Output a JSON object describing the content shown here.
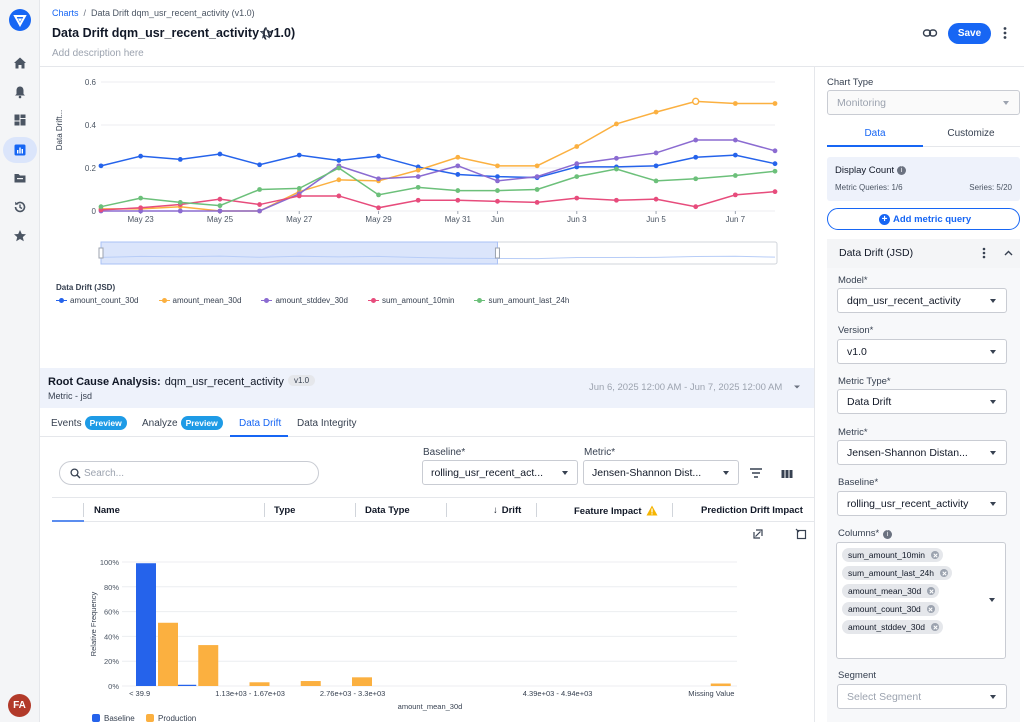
{
  "breadcrumb": {
    "root": "Charts",
    "separator": "/",
    "current": "Data Drift dqm_usr_recent_activity (v1.0)"
  },
  "header": {
    "title": "Data Drift dqm_usr_recent_activity (v1.0)",
    "description_placeholder": "Add description here",
    "save_label": "Save"
  },
  "user": {
    "initials": "FA"
  },
  "colors": {
    "accent": "#1766f4",
    "series": [
      "#2563eb",
      "#fbb040",
      "#8b6bd1",
      "#e74c7c",
      "#6cc07a"
    ]
  },
  "chart_data": [
    {
      "type": "line",
      "ylabel": "Data Drift...",
      "ylim": [
        0,
        0.6
      ],
      "yticks": [
        "0",
        "0.2",
        "0.4",
        "0.6"
      ],
      "x_tick_labels": [
        "May 23",
        "May 25",
        "May 27",
        "May 29",
        "May 31",
        "Jun",
        "Jun 3",
        "Jun 5",
        "Jun 7"
      ],
      "x": [
        "May 22",
        "May 23",
        "May 24",
        "May 25",
        "May 26",
        "May 27",
        "May 28",
        "May 29",
        "May 30",
        "May 31",
        "Jun 1",
        "Jun 2",
        "Jun 3",
        "Jun 4",
        "Jun 5",
        "Jun 6",
        "Jun 7",
        "Jun 8"
      ],
      "legend_title": "Data Drift (JSD)",
      "series": [
        {
          "name": "amount_count_30d",
          "color": "#2563eb",
          "values": [
            0.21,
            0.255,
            0.24,
            0.265,
            0.215,
            0.26,
            0.235,
            0.255,
            0.205,
            0.17,
            0.16,
            0.155,
            0.205,
            0.205,
            0.21,
            0.25,
            0.26,
            0.22
          ]
        },
        {
          "name": "amount_mean_30d",
          "color": "#fbb040",
          "values": [
            0.01,
            0.01,
            0.02,
            0.0,
            0.0,
            0.09,
            0.145,
            0.14,
            0.19,
            0.25,
            0.21,
            0.21,
            0.3,
            0.405,
            0.46,
            0.51,
            0.5,
            0.5
          ]
        },
        {
          "name": "amount_stddev_30d",
          "color": "#8b6bd1",
          "values": [
            0.0,
            0.0,
            0.0,
            0.0,
            0.0,
            0.08,
            0.21,
            0.15,
            0.16,
            0.21,
            0.14,
            0.16,
            0.22,
            0.245,
            0.27,
            0.33,
            0.33,
            0.28
          ]
        },
        {
          "name": "sum_amount_10min",
          "color": "#e74c7c",
          "values": [
            0.005,
            0.015,
            0.03,
            0.055,
            0.03,
            0.07,
            0.07,
            0.015,
            0.05,
            0.05,
            0.045,
            0.04,
            0.06,
            0.05,
            0.055,
            0.02,
            0.075,
            0.09
          ]
        },
        {
          "name": "sum_amount_last_24h",
          "color": "#6cc07a",
          "values": [
            0.02,
            0.06,
            0.04,
            0.025,
            0.1,
            0.105,
            0.2,
            0.075,
            0.11,
            0.095,
            0.095,
            0.1,
            0.16,
            0.195,
            0.14,
            0.15,
            0.165,
            0.185
          ]
        }
      ],
      "hollow_markers": [
        {
          "series": "amount_mean_30d",
          "x": "Jun 6"
        }
      ],
      "range_slider": {
        "start": "May 22",
        "end": "Jun 1"
      }
    },
    {
      "type": "bar",
      "ylabel": "Relative Frequency",
      "xlabel": "amount_mean_30d",
      "ylim": [
        0,
        100
      ],
      "yticks": [
        "0%",
        "20%",
        "40%",
        "60%",
        "80%",
        "100%"
      ],
      "x_tick_labels": [
        "< 39.9",
        "1.13e+03 - 1.67e+03",
        "2.76e+03 - 3.3e+03",
        "4.39e+03 - 4.94e+03",
        "Missing Value"
      ],
      "categories": 12,
      "series": [
        {
          "name": "Baseline",
          "color": "#2563eb",
          "values": [
            99,
            1,
            0,
            0,
            0,
            0,
            0,
            0,
            0,
            0,
            0,
            0
          ]
        },
        {
          "name": "Production",
          "color": "#fbb040",
          "values": [
            51,
            33,
            3,
            4,
            7,
            0,
            0,
            0,
            0,
            0,
            0,
            2
          ]
        }
      ]
    }
  ],
  "rca": {
    "label": "Root Cause Analysis:",
    "model": "dqm_usr_recent_activity",
    "version": "v1.0",
    "metric": "Metric - jsd",
    "date_range": "Jun 6, 2025 12:00 AM - Jun 7, 2025 12:00 AM",
    "tabs": [
      {
        "label": "Events",
        "badge": "Preview"
      },
      {
        "label": "Analyze",
        "badge": "Preview"
      },
      {
        "label": "Data Drift",
        "badge": ""
      },
      {
        "label": "Data Integrity",
        "badge": ""
      }
    ],
    "search_placeholder": "Search...",
    "baseline_label": "Baseline*",
    "baseline_value": "rolling_usr_recent_act...",
    "metric_label": "Metric*",
    "metric_value": "Jensen-Shannon Dist...",
    "columns": [
      "Name",
      "Type",
      "Data Type",
      "Drift",
      "Feature Impact",
      "Prediction Drift Impact"
    ],
    "sort_column": "Drift"
  },
  "panel": {
    "chart_type_label": "Chart Type",
    "chart_type_value": "Monitoring",
    "tabs": [
      "Data",
      "Customize"
    ],
    "display_count_label": "Display Count",
    "metric_queries": "Metric Queries: 1/6",
    "series_count": "Series: 5/20",
    "add_query_label": "Add metric query",
    "query_title": "Data Drift (JSD)",
    "model_label": "Model*",
    "model_value": "dqm_usr_recent_activity",
    "version_label": "Version*",
    "version_value": "v1.0",
    "metric_type_label": "Metric Type*",
    "metric_type_value": "Data Drift",
    "metric_label": "Metric*",
    "metric_value": "Jensen-Shannon Distan...",
    "baseline_label": "Baseline*",
    "baseline_value": "rolling_usr_recent_activity",
    "columns_label": "Columns*",
    "columns": [
      "sum_amount_10min",
      "sum_amount_last_24h",
      "amount_mean_30d",
      "amount_count_30d",
      "amount_stddev_30d"
    ],
    "segment_label": "Segment",
    "segment_placeholder": "Select Segment"
  }
}
